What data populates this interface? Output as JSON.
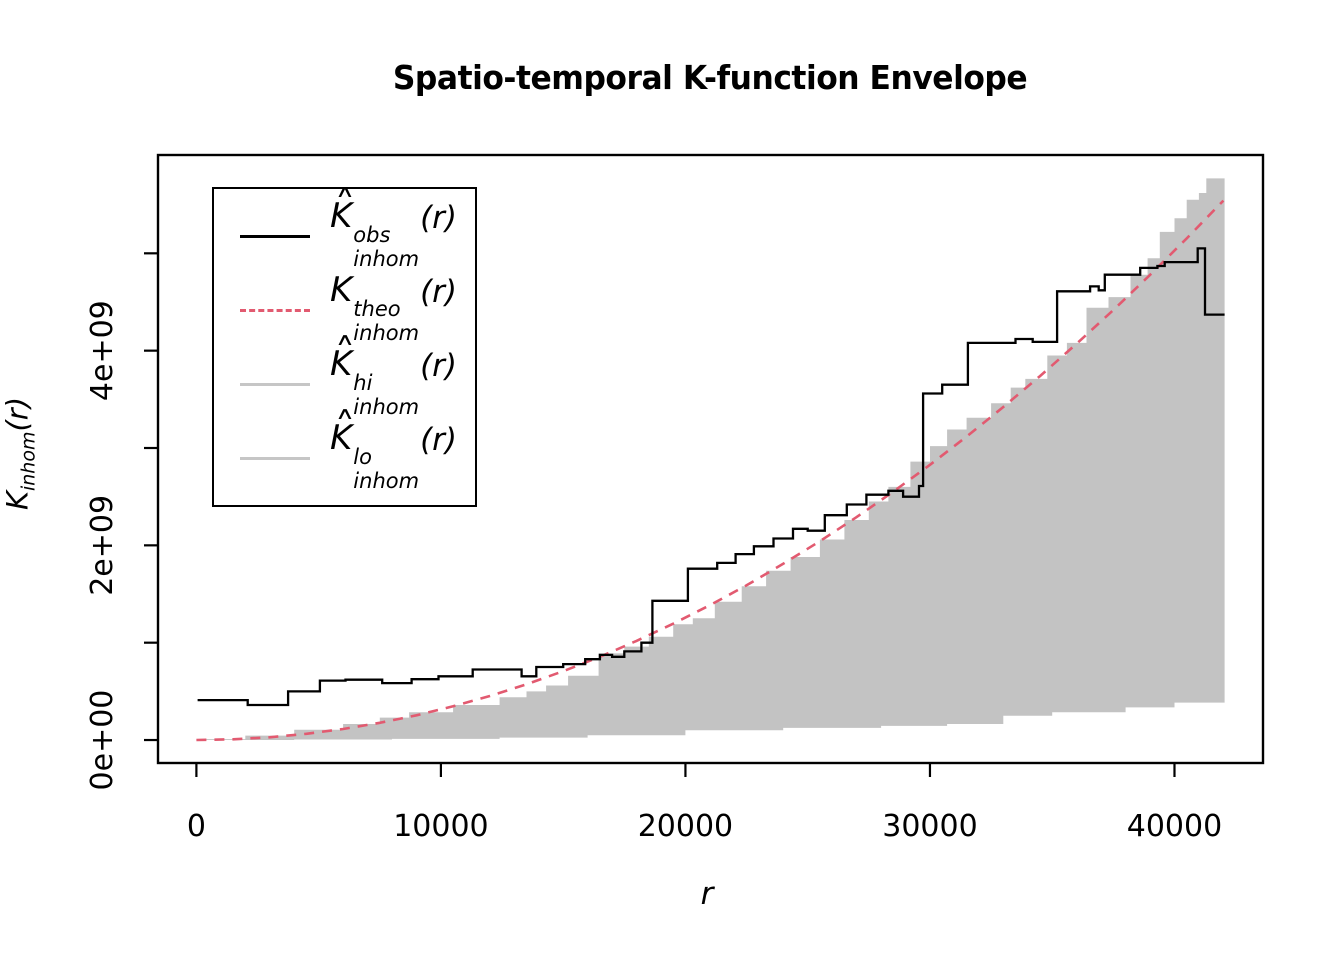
{
  "title": "Spatio-temporal K-function Envelope",
  "axes": {
    "x_label": "r",
    "y_label": {
      "base": "K",
      "sub": "inhom",
      "arg": "(r)"
    },
    "x_ticks": [
      {
        "value": 0,
        "label": "0"
      },
      {
        "value": 10000,
        "label": "10000"
      },
      {
        "value": 20000,
        "label": "20000"
      },
      {
        "value": 30000,
        "label": "30000"
      },
      {
        "value": 40000,
        "label": "40000"
      }
    ],
    "y_ticks": [
      {
        "value": 0,
        "label": "0e+00"
      },
      {
        "value": 1,
        "label": ""
      },
      {
        "value": 2,
        "label": "2e+09"
      },
      {
        "value": 3,
        "label": ""
      },
      {
        "value": 4,
        "label": "4e+09"
      },
      {
        "value": 5,
        "label": ""
      }
    ]
  },
  "legend": {
    "entries": [
      {
        "sample": "solid-black",
        "hat": true,
        "base": "K",
        "sup": "obs",
        "sub": "inhom",
        "arg": "(r)",
        "color": "#000000"
      },
      {
        "sample": "dashed-red",
        "hat": false,
        "base": "K",
        "sup": "theo",
        "sub": "inhom",
        "arg": "(r)",
        "color": "#E25A70"
      },
      {
        "sample": "solid-gray",
        "hat": true,
        "base": "K",
        "sup": "hi",
        "sub": "inhom",
        "arg": "(r)",
        "color": "#C6C6C6"
      },
      {
        "sample": "solid-gray",
        "hat": true,
        "base": "K",
        "sup": "lo",
        "sub": "inhom",
        "arg": "(r)",
        "color": "#C6C6C6"
      }
    ]
  },
  "chart_data": {
    "type": "line",
    "title": "Spatio-temporal K-function Envelope",
    "xlabel": "r",
    "ylabel": "K_inhom(r)",
    "values_unit": "1e9",
    "xlim": [
      -1570,
      43620
    ],
    "ylim": [
      -0.236,
      6.01
    ],
    "x_tick_values": [
      0,
      10000,
      20000,
      30000,
      40000
    ],
    "y_tick_values": [
      0,
      1,
      2,
      3,
      4,
      5
    ],
    "grid": false,
    "legend_position": "top-left",
    "envelope_fill": "#C3C3C3",
    "series": [
      {
        "name": "observed",
        "label": "Khat_obs_inhom(r)",
        "color": "#000000",
        "style": "step",
        "dash": "solid",
        "points": [
          [
            50,
            0.41
          ],
          [
            2100,
            0.36
          ],
          [
            3750,
            0.5
          ],
          [
            5050,
            0.61
          ],
          [
            6100,
            0.62
          ],
          [
            7600,
            0.585
          ],
          [
            8800,
            0.625
          ],
          [
            9900,
            0.655
          ],
          [
            11300,
            0.725
          ],
          [
            13300,
            0.655
          ],
          [
            13900,
            0.75
          ],
          [
            15000,
            0.78
          ],
          [
            15900,
            0.83
          ],
          [
            16500,
            0.875
          ],
          [
            17000,
            0.855
          ],
          [
            17500,
            0.91
          ],
          [
            18200,
            1.0
          ],
          [
            18650,
            1.43
          ],
          [
            20100,
            1.76
          ],
          [
            21300,
            1.82
          ],
          [
            22050,
            1.91
          ],
          [
            22800,
            1.99
          ],
          [
            23600,
            2.07
          ],
          [
            24400,
            2.17
          ],
          [
            25000,
            2.15
          ],
          [
            25700,
            2.31
          ],
          [
            26600,
            2.42
          ],
          [
            27400,
            2.52
          ],
          [
            28300,
            2.56
          ],
          [
            28900,
            2.5
          ],
          [
            29550,
            2.61
          ],
          [
            29720,
            3.56
          ],
          [
            30500,
            3.65
          ],
          [
            31550,
            4.08
          ],
          [
            33500,
            4.12
          ],
          [
            34200,
            4.09
          ],
          [
            35200,
            4.61
          ],
          [
            36550,
            4.66
          ],
          [
            36900,
            4.62
          ],
          [
            37150,
            4.78
          ],
          [
            38600,
            4.85
          ],
          [
            39300,
            4.87
          ],
          [
            39600,
            4.91
          ],
          [
            40950,
            5.05
          ],
          [
            41250,
            4.37
          ],
          [
            42050,
            4.37
          ]
        ]
      },
      {
        "name": "theoretical",
        "label": "K_theo_inhom(r) = pi*r^2",
        "color": "#E25A70",
        "style": "line",
        "dash": "dashed",
        "points": [
          [
            0,
            0
          ],
          [
            1500,
            0.007
          ],
          [
            3000,
            0.028
          ],
          [
            4500,
            0.064
          ],
          [
            6000,
            0.113
          ],
          [
            7500,
            0.177
          ],
          [
            9000,
            0.254
          ],
          [
            10500,
            0.346
          ],
          [
            12000,
            0.452
          ],
          [
            13500,
            0.573
          ],
          [
            15000,
            0.707
          ],
          [
            16500,
            0.855
          ],
          [
            18000,
            1.018
          ],
          [
            19500,
            1.195
          ],
          [
            21000,
            1.385
          ],
          [
            22500,
            1.59
          ],
          [
            24000,
            1.81
          ],
          [
            25500,
            2.043
          ],
          [
            27000,
            2.29
          ],
          [
            28500,
            2.552
          ],
          [
            30000,
            2.827
          ],
          [
            31500,
            3.117
          ],
          [
            33000,
            3.421
          ],
          [
            34500,
            3.739
          ],
          [
            36000,
            4.072
          ],
          [
            37500,
            4.418
          ],
          [
            39000,
            4.778
          ],
          [
            40500,
            5.153
          ],
          [
            42000,
            5.542
          ]
        ]
      },
      {
        "name": "hi",
        "label": "Khat_hi_inhom(r)",
        "color": "#C3C3C3",
        "style": "step",
        "dash": "solid",
        "points": [
          [
            150,
            0.01
          ],
          [
            2000,
            0.045
          ],
          [
            4000,
            0.105
          ],
          [
            6000,
            0.165
          ],
          [
            7500,
            0.23
          ],
          [
            8700,
            0.285
          ],
          [
            10500,
            0.36
          ],
          [
            12400,
            0.44
          ],
          [
            13500,
            0.5
          ],
          [
            14300,
            0.56
          ],
          [
            15200,
            0.66
          ],
          [
            16450,
            0.89
          ],
          [
            17500,
            0.96
          ],
          [
            18500,
            1.06
          ],
          [
            19500,
            1.19
          ],
          [
            20300,
            1.25
          ],
          [
            21200,
            1.42
          ],
          [
            22300,
            1.58
          ],
          [
            23300,
            1.74
          ],
          [
            24300,
            1.88
          ],
          [
            25500,
            2.06
          ],
          [
            26500,
            2.26
          ],
          [
            27500,
            2.45
          ],
          [
            28300,
            2.6
          ],
          [
            29200,
            2.86
          ],
          [
            30000,
            3.02
          ],
          [
            30700,
            3.19
          ],
          [
            31500,
            3.31
          ],
          [
            32500,
            3.46
          ],
          [
            33300,
            3.62
          ],
          [
            33900,
            3.71
          ],
          [
            34800,
            3.95
          ],
          [
            35600,
            4.08
          ],
          [
            36400,
            4.44
          ],
          [
            37300,
            4.55
          ],
          [
            38200,
            4.78
          ],
          [
            38900,
            4.95
          ],
          [
            39400,
            5.22
          ],
          [
            40000,
            5.36
          ],
          [
            40500,
            5.55
          ],
          [
            41000,
            5.62
          ],
          [
            41300,
            5.77
          ],
          [
            42050,
            5.79
          ]
        ]
      },
      {
        "name": "lo",
        "label": "Khat_lo_inhom(r)",
        "color": "#C3C3C3",
        "style": "step",
        "dash": "solid",
        "points": [
          [
            150,
            0.0
          ],
          [
            4000,
            0.005
          ],
          [
            8000,
            0.012
          ],
          [
            12400,
            0.025
          ],
          [
            16000,
            0.05
          ],
          [
            20000,
            0.1
          ],
          [
            24000,
            0.125
          ],
          [
            28000,
            0.145
          ],
          [
            30700,
            0.165
          ],
          [
            33000,
            0.25
          ],
          [
            35000,
            0.285
          ],
          [
            38000,
            0.335
          ],
          [
            40000,
            0.385
          ],
          [
            42050,
            0.43
          ]
        ]
      }
    ]
  }
}
